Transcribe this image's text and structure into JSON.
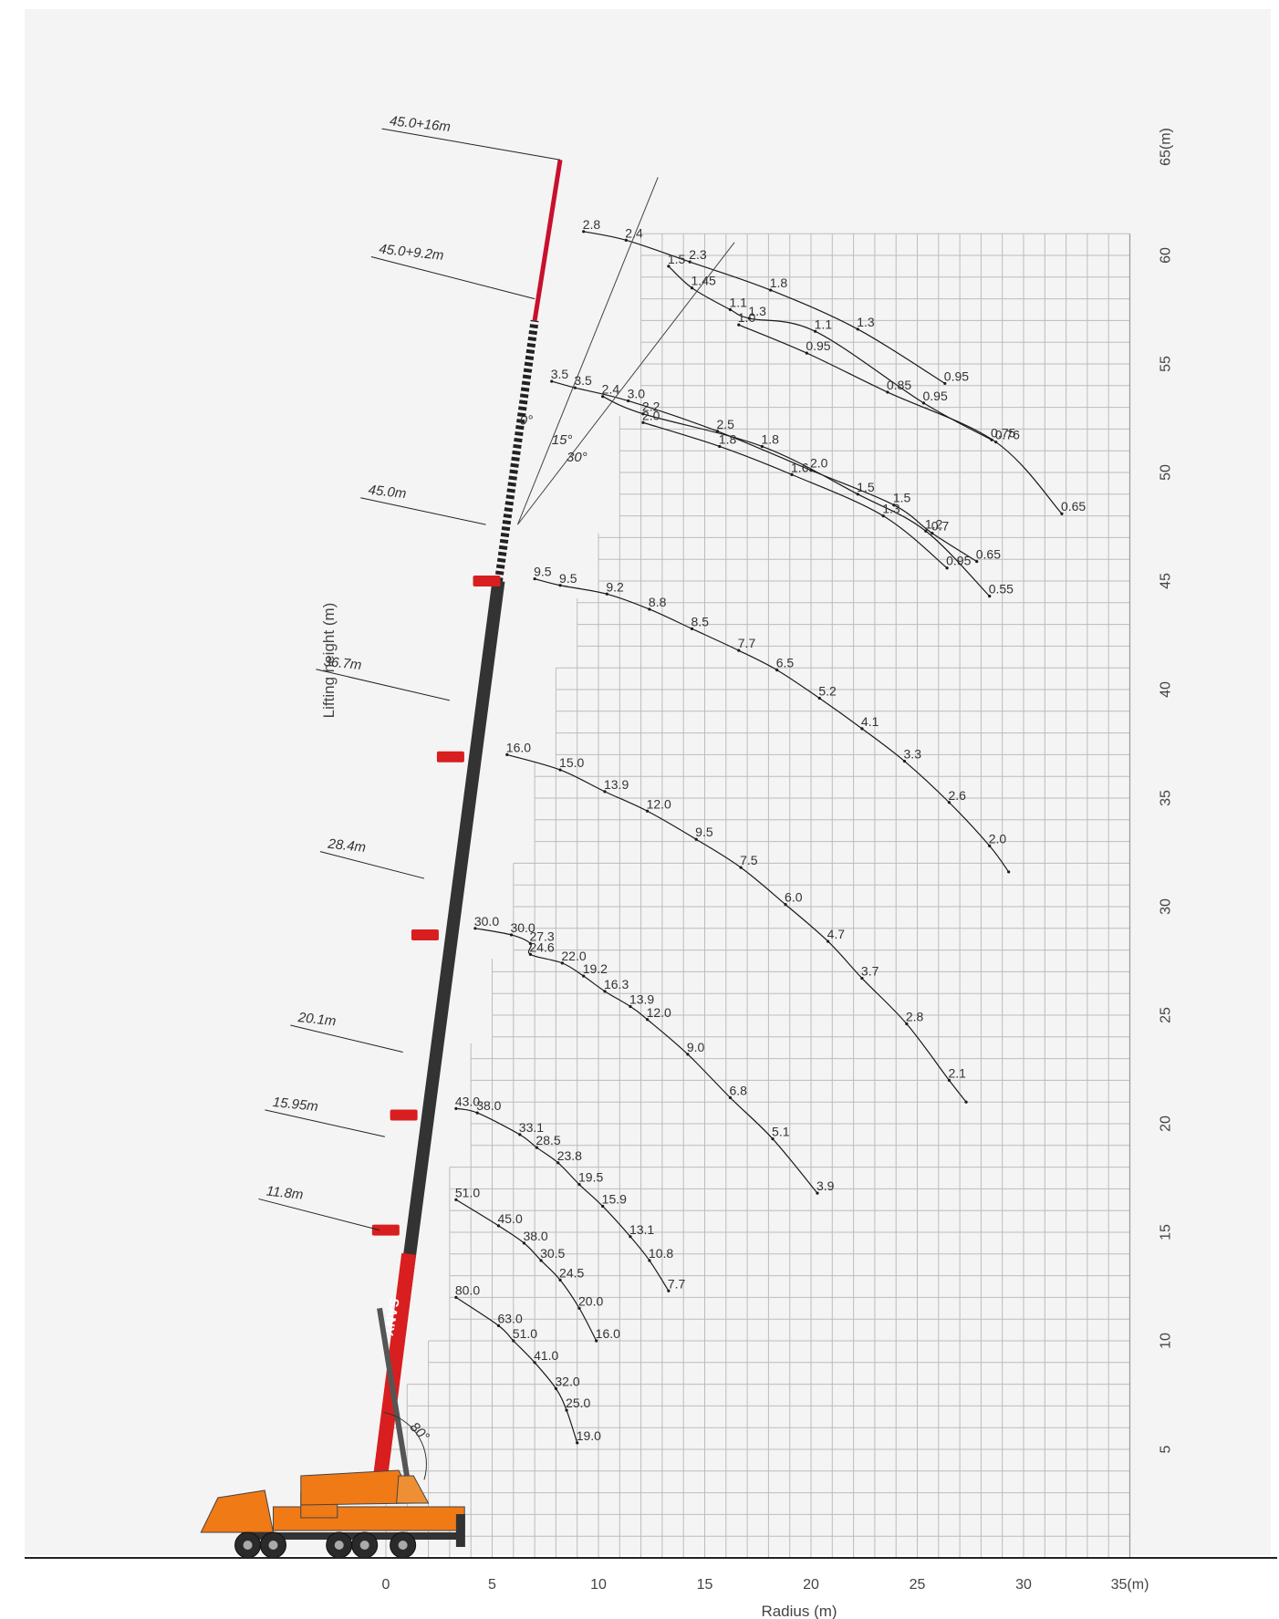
{
  "chart_data": {
    "type": "line",
    "title": "",
    "xlabel": "Radius (m)",
    "ylabel": "Lifting height (m)",
    "xlim": [
      0,
      35
    ],
    "ylim": [
      0,
      65
    ],
    "x_ticks": [
      "0",
      "5",
      "10",
      "15",
      "20",
      "25",
      "30",
      "35(m)"
    ],
    "y_ticks": [
      "5",
      "10",
      "15",
      "20",
      "25",
      "30",
      "35",
      "40",
      "45",
      "50",
      "55",
      "60",
      "65(m)"
    ],
    "grid": true,
    "series": [
      {
        "name": "11.8m",
        "points": [
          {
            "x": 3.3,
            "y": 12.0,
            "load": "80.0"
          },
          {
            "x": 5.3,
            "y": 10.7,
            "load": "63.0"
          },
          {
            "x": 6.0,
            "y": 10.0,
            "load": "51.0"
          },
          {
            "x": 7.0,
            "y": 9.0,
            "load": "41.0"
          },
          {
            "x": 8.0,
            "y": 7.8,
            "load": "32.0"
          },
          {
            "x": 8.5,
            "y": 6.8,
            "load": "25.0"
          },
          {
            "x": 9.0,
            "y": 5.3,
            "load": "19.0"
          }
        ]
      },
      {
        "name": "15.95m",
        "points": [
          {
            "x": 3.3,
            "y": 16.5,
            "load": "51.0"
          },
          {
            "x": 5.3,
            "y": 15.3,
            "load": "45.0"
          },
          {
            "x": 6.5,
            "y": 14.5,
            "load": "38.0"
          },
          {
            "x": 7.3,
            "y": 13.7,
            "load": "30.5"
          },
          {
            "x": 8.2,
            "y": 12.8,
            "load": "24.5"
          },
          {
            "x": 9.1,
            "y": 11.5,
            "load": "20.0"
          },
          {
            "x": 9.9,
            "y": 10.0,
            "load": "16.0"
          }
        ]
      },
      {
        "name": "20.1m",
        "points": [
          {
            "x": 3.3,
            "y": 20.7,
            "load": "43.0"
          },
          {
            "x": 4.3,
            "y": 20.5,
            "load": "38.0"
          },
          {
            "x": 6.3,
            "y": 19.5,
            "load": "33.1"
          },
          {
            "x": 7.1,
            "y": 18.9,
            "load": "28.5"
          },
          {
            "x": 8.1,
            "y": 18.2,
            "load": "23.8"
          },
          {
            "x": 9.1,
            "y": 17.2,
            "load": "19.5"
          },
          {
            "x": 10.2,
            "y": 16.2,
            "load": "15.9"
          },
          {
            "x": 11.5,
            "y": 14.8,
            "load": "13.1"
          },
          {
            "x": 12.4,
            "y": 13.7,
            "load": "10.8"
          },
          {
            "x": 13.3,
            "y": 12.3,
            "load": "7.7"
          }
        ]
      },
      {
        "name": "28.4m",
        "points": [
          {
            "x": 4.2,
            "y": 29.0,
            "load": "30.0"
          },
          {
            "x": 5.9,
            "y": 28.7,
            "load": "30.0"
          },
          {
            "x": 6.8,
            "y": 28.3,
            "load": "27.3"
          },
          {
            "x": 6.8,
            "y": 27.8,
            "load": "24.6"
          },
          {
            "x": 8.3,
            "y": 27.4,
            "load": "22.0"
          },
          {
            "x": 9.3,
            "y": 26.8,
            "load": "19.2"
          },
          {
            "x": 10.3,
            "y": 26.1,
            "load": "16.3"
          },
          {
            "x": 11.5,
            "y": 25.4,
            "load": "13.9"
          },
          {
            "x": 12.3,
            "y": 24.8,
            "load": "12.0"
          },
          {
            "x": 14.2,
            "y": 23.2,
            "load": "9.0"
          },
          {
            "x": 16.2,
            "y": 21.2,
            "load": "6.8"
          },
          {
            "x": 18.2,
            "y": 19.3,
            "load": "5.1"
          },
          {
            "x": 20.3,
            "y": 16.8,
            "load": "3.9"
          }
        ]
      },
      {
        "name": "36.7m",
        "points": [
          {
            "x": 5.7,
            "y": 37.0,
            "load": "16.0"
          },
          {
            "x": 8.2,
            "y": 36.3,
            "load": "15.0"
          },
          {
            "x": 10.3,
            "y": 35.3,
            "load": "13.9"
          },
          {
            "x": 12.3,
            "y": 34.4,
            "load": "12.0"
          },
          {
            "x": 14.6,
            "y": 33.1,
            "load": "9.5"
          },
          {
            "x": 16.7,
            "y": 31.8,
            "load": "7.5"
          },
          {
            "x": 18.8,
            "y": 30.1,
            "load": "6.0"
          },
          {
            "x": 20.8,
            "y": 28.4,
            "load": "4.7"
          },
          {
            "x": 22.4,
            "y": 26.7,
            "load": "3.7"
          },
          {
            "x": 24.5,
            "y": 24.6,
            "load": "2.8"
          },
          {
            "x": 26.5,
            "y": 22.0,
            "load": "2.1"
          },
          {
            "x": 27.3,
            "y": 21.0,
            "load": ""
          }
        ]
      },
      {
        "name": "45.0m",
        "points": [
          {
            "x": 7.0,
            "y": 45.1,
            "load": "9.5"
          },
          {
            "x": 8.2,
            "y": 44.8,
            "load": "9.5"
          },
          {
            "x": 10.4,
            "y": 44.4,
            "load": "9.2"
          },
          {
            "x": 12.4,
            "y": 43.7,
            "load": "8.8"
          },
          {
            "x": 14.4,
            "y": 42.8,
            "load": "8.5"
          },
          {
            "x": 16.6,
            "y": 41.8,
            "load": "7.7"
          },
          {
            "x": 18.4,
            "y": 40.9,
            "load": "6.5"
          },
          {
            "x": 20.4,
            "y": 39.6,
            "load": "5.2"
          },
          {
            "x": 22.4,
            "y": 38.2,
            "load": "4.1"
          },
          {
            "x": 24.4,
            "y": 36.7,
            "load": "3.3"
          },
          {
            "x": 26.5,
            "y": 34.8,
            "load": "2.6"
          },
          {
            "x": 28.4,
            "y": 32.8,
            "load": "2.0"
          },
          {
            "x": 29.3,
            "y": 31.6,
            "load": ""
          }
        ]
      },
      {
        "name": "45.0+9.2m 0°",
        "points": [
          {
            "x": 7.8,
            "y": 54.2,
            "load": "3.5"
          },
          {
            "x": 8.9,
            "y": 53.9,
            "load": "3.5"
          },
          {
            "x": 11.4,
            "y": 53.3,
            "load": "3.0"
          },
          {
            "x": 15.6,
            "y": 51.9,
            "load": "2.5"
          },
          {
            "x": 20.0,
            "y": 50.1,
            "load": "2.0"
          },
          {
            "x": 23.9,
            "y": 48.5,
            "load": "1.5"
          },
          {
            "x": 25.7,
            "y": 47.2,
            "load": "0.7"
          },
          {
            "x": 27.8,
            "y": 45.9,
            "load": "0.65"
          }
        ]
      },
      {
        "name": "45.0+9.2m 15°",
        "points": [
          {
            "x": 10.2,
            "y": 53.5,
            "load": "2.4"
          },
          {
            "x": 12.1,
            "y": 52.7,
            "load": "2.2"
          },
          {
            "x": 17.7,
            "y": 51.2,
            "load": "1.8"
          },
          {
            "x": 22.2,
            "y": 49.0,
            "load": "1.5"
          },
          {
            "x": 25.4,
            "y": 47.3,
            "load": "1.2"
          },
          {
            "x": 28.4,
            "y": 44.3,
            "load": "0.55"
          }
        ]
      },
      {
        "name": "45.0+9.2m 30°",
        "points": [
          {
            "x": 12.1,
            "y": 52.3,
            "load": "2.0"
          },
          {
            "x": 15.7,
            "y": 51.2,
            "load": "1.8"
          },
          {
            "x": 19.1,
            "y": 49.9,
            "load": "1.6"
          },
          {
            "x": 23.4,
            "y": 48.0,
            "load": "1.3"
          },
          {
            "x": 26.4,
            "y": 45.6,
            "load": "0.95"
          }
        ]
      },
      {
        "name": "45.0+16m 0°",
        "points": [
          {
            "x": 9.3,
            "y": 61.1,
            "load": "2.8"
          },
          {
            "x": 11.3,
            "y": 60.7,
            "load": "2.4"
          },
          {
            "x": 14.3,
            "y": 59.7,
            "load": "2.3"
          },
          {
            "x": 18.1,
            "y": 58.4,
            "load": "1.8"
          },
          {
            "x": 22.2,
            "y": 56.6,
            "load": "1.3"
          },
          {
            "x": 26.3,
            "y": 54.1,
            "load": "0.95"
          }
        ]
      },
      {
        "name": "45.0+16m 15°",
        "points": [
          {
            "x": 13.3,
            "y": 59.5,
            "load": "1.5"
          },
          {
            "x": 14.4,
            "y": 58.5,
            "load": "1.45"
          },
          {
            "x": 16.2,
            "y": 57.5,
            "load": "1.1"
          },
          {
            "x": 17.1,
            "y": 57.1,
            "load": "1.3"
          },
          {
            "x": 20.2,
            "y": 56.5,
            "load": "1.1"
          },
          {
            "x": 25.3,
            "y": 53.2,
            "load": "0.95"
          },
          {
            "x": 28.5,
            "y": 51.5,
            "load": "0.75"
          }
        ]
      },
      {
        "name": "45.0+16m 30°",
        "points": [
          {
            "x": 16.6,
            "y": 56.8,
            "load": "1.0"
          },
          {
            "x": 19.8,
            "y": 55.5,
            "load": "0.95"
          },
          {
            "x": 23.6,
            "y": 53.7,
            "load": "0.85"
          },
          {
            "x": 28.7,
            "y": 51.4,
            "load": "0.76"
          },
          {
            "x": 31.8,
            "y": 48.1,
            "load": "0.65"
          }
        ]
      }
    ],
    "boom_lengths": [
      "45.0+16m",
      "45.0+9.2m",
      "45.0m",
      "36.7m",
      "28.4m",
      "20.1m",
      "15.95m",
      "11.8m"
    ],
    "offset_angles": [
      "0°",
      "15°",
      "30°"
    ],
    "boom_angle": "80°",
    "brand": "SANY"
  }
}
